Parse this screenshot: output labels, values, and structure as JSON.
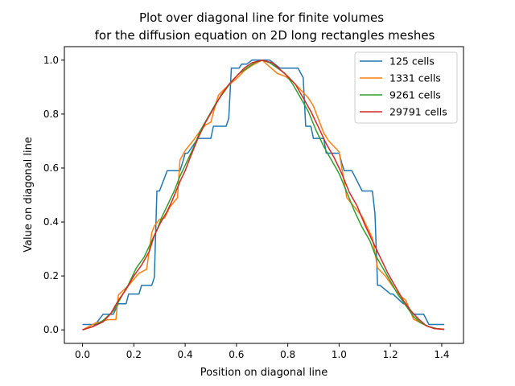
{
  "chart_data": {
    "type": "line",
    "title": [
      "Plot over diagonal line for finite volumes",
      "for the diffusion equation on 2D long rectangles meshes"
    ],
    "xlabel": "Position on diagonal line",
    "ylabel": "Value on diagonal line",
    "xlim": [
      -0.0707,
      1.4849
    ],
    "ylim": [
      -0.05,
      1.05
    ],
    "xticks": [
      "0.0",
      "0.2",
      "0.4",
      "0.6",
      "0.8",
      "1.0",
      "1.2",
      "1.4"
    ],
    "yticks": [
      "0.0",
      "0.2",
      "0.4",
      "0.6",
      "0.8",
      "1.0"
    ],
    "grid": false,
    "legend_position": "upper right",
    "series": [
      {
        "name": "125 cells",
        "color": "#1f77b4",
        "x": [
          0,
          0.04,
          0.05,
          0.08,
          0.09,
          0.11,
          0.12,
          0.14,
          0.16,
          0.17,
          0.18,
          0.22,
          0.23,
          0.27,
          0.28,
          0.29,
          0.3,
          0.33,
          0.34,
          0.38,
          0.39,
          0.4,
          0.41,
          0.45,
          0.46,
          0.5,
          0.51,
          0.56,
          0.57,
          0.58,
          0.6,
          0.61,
          0.62,
          0.64,
          0.66,
          0.7,
          0.73,
          0.75,
          0.77,
          0.78,
          0.8,
          0.81,
          0.84,
          0.86,
          0.87,
          0.89,
          0.9,
          0.94,
          0.95,
          0.99,
          1.0,
          1.01,
          1.02,
          1.04,
          1.05,
          1.09,
          1.1,
          1.13,
          1.14,
          1.15,
          1.16,
          1.2,
          1.21,
          1.25,
          1.26,
          1.29,
          1.3,
          1.32,
          1.33,
          1.35,
          1.36,
          1.41
        ],
        "y": [
          0.02,
          0.02,
          0.02,
          0.058,
          0.058,
          0.058,
          0.058,
          0.097,
          0.097,
          0.097,
          0.133,
          0.133,
          0.165,
          0.165,
          0.195,
          0.515,
          0.515,
          0.59,
          0.59,
          0.59,
          0.62,
          0.655,
          0.655,
          0.71,
          0.71,
          0.71,
          0.755,
          0.755,
          0.785,
          0.97,
          0.97,
          0.97,
          0.985,
          0.985,
          1.0,
          1.0,
          1.0,
          0.985,
          0.97,
          0.97,
          0.97,
          0.97,
          0.97,
          0.935,
          0.755,
          0.755,
          0.71,
          0.71,
          0.655,
          0.655,
          0.655,
          0.62,
          0.59,
          0.59,
          0.59,
          0.515,
          0.515,
          0.515,
          0.43,
          0.165,
          0.165,
          0.133,
          0.133,
          0.097,
          0.097,
          0.058,
          0.058,
          0.058,
          0.058,
          0.02,
          0.02,
          0.02
        ]
      },
      {
        "name": "1331 cells",
        "color": "#ff7f0e",
        "x": [
          0,
          0.05,
          0.1,
          0.13,
          0.14,
          0.18,
          0.22,
          0.25,
          0.27,
          0.28,
          0.3,
          0.32,
          0.34,
          0.37,
          0.38,
          0.4,
          0.43,
          0.46,
          0.48,
          0.5,
          0.52,
          0.53,
          0.55,
          0.58,
          0.61,
          0.63,
          0.66,
          0.7,
          0.73,
          0.76,
          0.79,
          0.82,
          0.84,
          0.86,
          0.88,
          0.9,
          0.92,
          0.94,
          0.96,
          0.98,
          1.0,
          1.03,
          1.06,
          1.09,
          1.11,
          1.13,
          1.15,
          1.18,
          1.21,
          1.24,
          1.26,
          1.29,
          1.32,
          1.35,
          1.38,
          1.41
        ],
        "y": [
          0,
          0.025,
          0.038,
          0.038,
          0.13,
          0.165,
          0.21,
          0.225,
          0.36,
          0.385,
          0.41,
          0.415,
          0.455,
          0.49,
          0.63,
          0.665,
          0.7,
          0.74,
          0.76,
          0.77,
          0.84,
          0.87,
          0.89,
          0.915,
          0.94,
          0.96,
          0.98,
          1.0,
          0.975,
          0.95,
          0.94,
          0.92,
          0.9,
          0.88,
          0.86,
          0.83,
          0.78,
          0.73,
          0.7,
          0.68,
          0.66,
          0.49,
          0.455,
          0.42,
          0.38,
          0.34,
          0.23,
          0.2,
          0.16,
          0.125,
          0.11,
          0.04,
          0.025,
          0.012,
          0.005,
          0.003
        ]
      },
      {
        "name": "9261 cells",
        "color": "#2ca02c",
        "x": [
          0,
          0.04,
          0.08,
          0.12,
          0.15,
          0.18,
          0.21,
          0.24,
          0.27,
          0.29,
          0.31,
          0.33,
          0.36,
          0.38,
          0.4,
          0.43,
          0.46,
          0.49,
          0.52,
          0.55,
          0.58,
          0.61,
          0.64,
          0.67,
          0.7,
          0.73,
          0.76,
          0.79,
          0.82,
          0.85,
          0.88,
          0.91,
          0.94,
          0.97,
          1.0,
          1.03,
          1.06,
          1.09,
          1.12,
          1.14,
          1.17,
          1.2,
          1.23,
          1.26,
          1.29,
          1.32,
          1.35,
          1.38,
          1.41
        ],
        "y": [
          0,
          0.012,
          0.035,
          0.07,
          0.12,
          0.17,
          0.23,
          0.27,
          0.33,
          0.37,
          0.42,
          0.46,
          0.52,
          0.57,
          0.61,
          0.67,
          0.74,
          0.79,
          0.84,
          0.88,
          0.92,
          0.95,
          0.97,
          0.99,
          1.0,
          0.99,
          0.97,
          0.95,
          0.91,
          0.86,
          0.81,
          0.74,
          0.68,
          0.63,
          0.58,
          0.51,
          0.44,
          0.38,
          0.33,
          0.28,
          0.23,
          0.18,
          0.13,
          0.09,
          0.05,
          0.025,
          0.012,
          0.005,
          0.002
        ]
      },
      {
        "name": "29791 cells",
        "color": "#d62728",
        "x": [
          0,
          0.04,
          0.08,
          0.11,
          0.14,
          0.17,
          0.2,
          0.23,
          0.26,
          0.28,
          0.3,
          0.33,
          0.35,
          0.38,
          0.4,
          0.42,
          0.45,
          0.48,
          0.51,
          0.54,
          0.57,
          0.6,
          0.63,
          0.66,
          0.7,
          0.74,
          0.77,
          0.8,
          0.83,
          0.86,
          0.89,
          0.92,
          0.95,
          0.98,
          1.01,
          1.04,
          1.07,
          1.1,
          1.13,
          1.16,
          1.19,
          1.22,
          1.25,
          1.28,
          1.31,
          1.34,
          1.37,
          1.41
        ],
        "y": [
          0,
          0.012,
          0.03,
          0.06,
          0.11,
          0.15,
          0.2,
          0.24,
          0.29,
          0.35,
          0.39,
          0.44,
          0.48,
          0.55,
          0.59,
          0.64,
          0.71,
          0.77,
          0.82,
          0.87,
          0.91,
          0.94,
          0.97,
          0.99,
          1.0,
          0.99,
          0.965,
          0.94,
          0.91,
          0.86,
          0.81,
          0.75,
          0.69,
          0.64,
          0.58,
          0.51,
          0.46,
          0.39,
          0.33,
          0.27,
          0.21,
          0.16,
          0.11,
          0.07,
          0.04,
          0.015,
          0.005,
          0.002
        ]
      }
    ]
  }
}
